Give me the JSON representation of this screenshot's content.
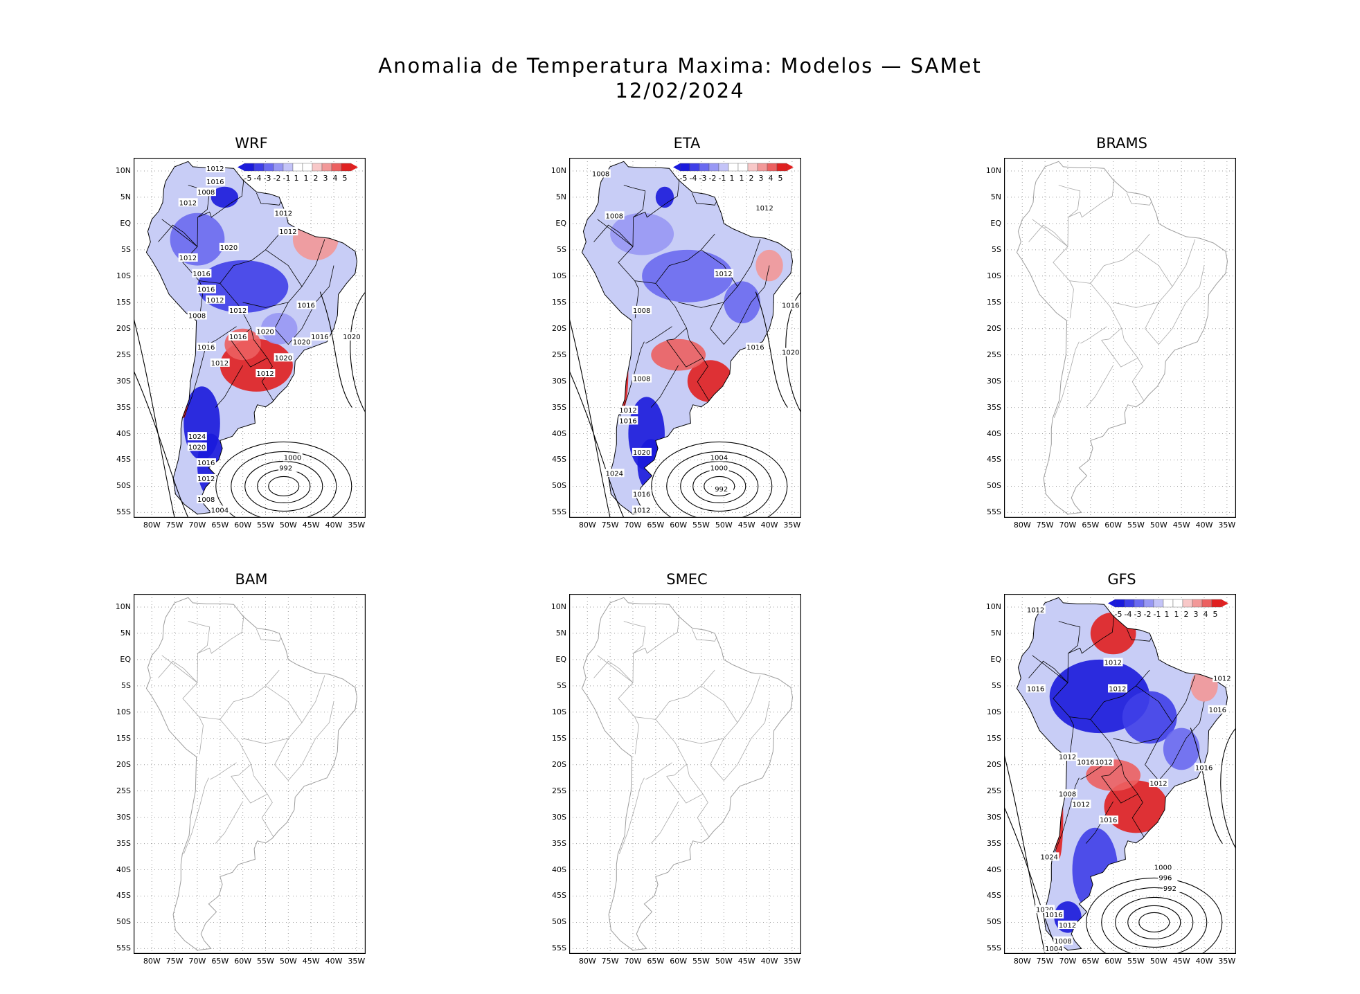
{
  "header": {
    "title": "Anomalia de Temperatura Maxima: Modelos — SAMet",
    "date": "12/02/2024"
  },
  "axes": {
    "lat_labels": [
      "10N",
      "5N",
      "EQ",
      "5S",
      "10S",
      "15S",
      "20S",
      "25S",
      "30S",
      "35S",
      "40S",
      "45S",
      "50S",
      "55S"
    ],
    "lon_labels": [
      "80W",
      "75W",
      "70W",
      "65W",
      "60W",
      "55W",
      "50W",
      "45W",
      "40W",
      "35W"
    ]
  },
  "colorbar": {
    "labels": [
      "-5",
      "-4",
      "-3",
      "-2",
      "-1",
      "1",
      "1",
      "2",
      "3",
      "4",
      "5"
    ],
    "colors": [
      "#1a1adc",
      "#3f3fe8",
      "#6a6af0",
      "#9898f4",
      "#c4c4f8",
      "#ffffff",
      "#ffffff",
      "#f8c8c8",
      "#f29898",
      "#ec6060",
      "#e02020"
    ]
  },
  "panels": [
    {
      "name": "WRF",
      "has_data": true,
      "isobars": [
        "1012",
        "1016",
        "1008",
        "1012",
        "1012",
        "1012",
        "1020",
        "1012",
        "1016",
        "1016",
        "1012",
        "1012",
        "1016",
        "1008",
        "1016",
        "1020",
        "1016",
        "1020",
        "1012",
        "1020",
        "1012",
        "1016",
        "1020",
        "1024",
        "1020",
        "1016",
        "1012",
        "1008",
        "1004",
        "1000",
        "992"
      ]
    },
    {
      "name": "ETA",
      "has_data": true,
      "isobars": [
        "1008",
        "1008",
        "1012",
        "1012",
        "1016",
        "1008",
        "1016",
        "1020",
        "1008",
        "1012",
        "1016",
        "1020",
        "1024",
        "1016",
        "1012",
        "1004",
        "1000",
        "992"
      ]
    },
    {
      "name": "BRAMS",
      "has_data": false,
      "isobars": []
    },
    {
      "name": "BAM",
      "has_data": false,
      "isobars": []
    },
    {
      "name": "SMEC",
      "has_data": false,
      "isobars": []
    },
    {
      "name": "GFS",
      "has_data": true,
      "isobars": [
        "1012",
        "1012",
        "1016",
        "1012",
        "1012",
        "1016",
        "1012",
        "1016",
        "1016",
        "1012",
        "1012",
        "1008",
        "1012",
        "1016",
        "1024",
        "1020",
        "1016",
        "1012",
        "1008",
        "1004",
        "1000",
        "996",
        "992"
      ]
    }
  ]
}
